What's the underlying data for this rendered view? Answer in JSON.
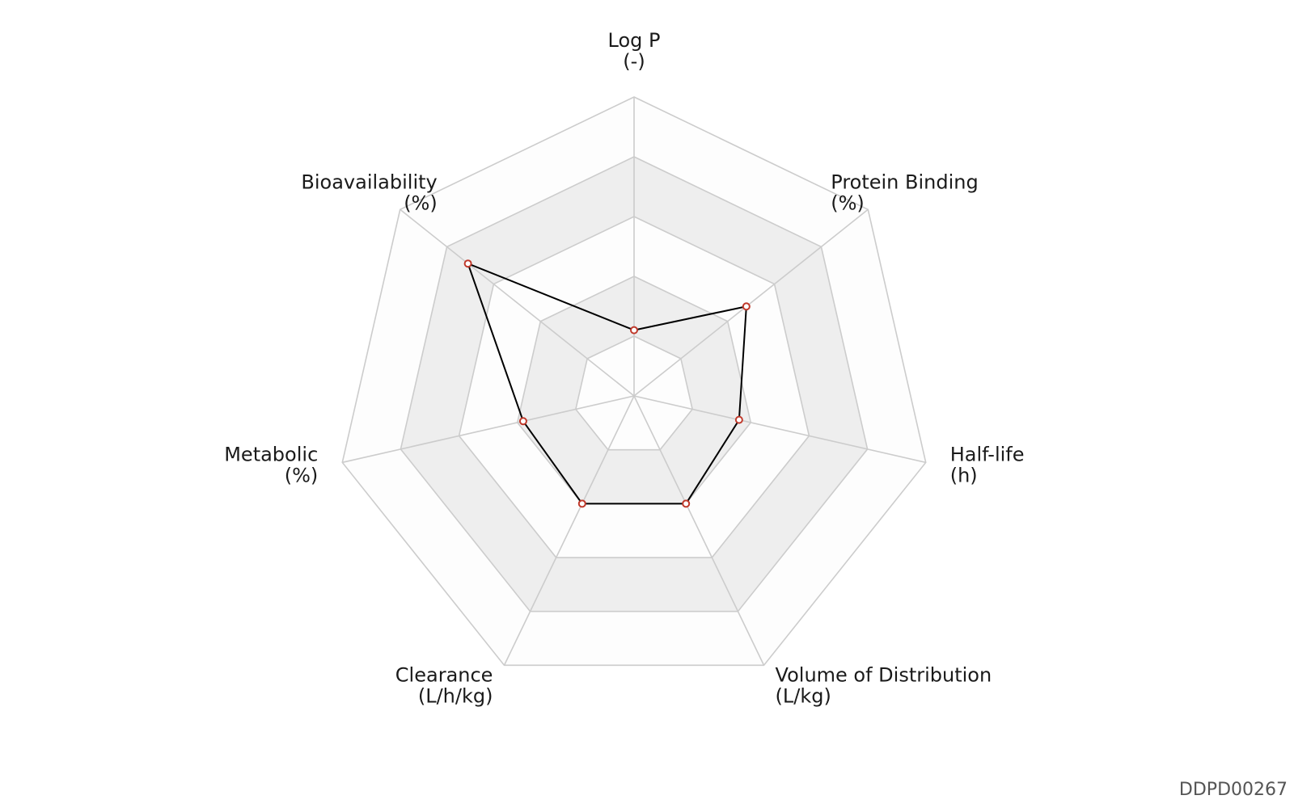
{
  "chart_data": {
    "type": "radar",
    "title": "",
    "axes": [
      {
        "name": "Log P",
        "unit": "(-)",
        "value": 0.22
      },
      {
        "name": "Protein Binding",
        "unit": "(%)",
        "value": 0.48
      },
      {
        "name": "Half-life",
        "unit": "(h)",
        "value": 0.36
      },
      {
        "name": "Volume of Distribution",
        "unit": "(L/kg)",
        "value": 0.4
      },
      {
        "name": "Clearance",
        "unit": "(L/h/kg)",
        "value": 0.4
      },
      {
        "name": "Metabolic",
        "unit": "(%)",
        "value": 0.38
      },
      {
        "name": "Bioavailability",
        "unit": "(%)",
        "value": 0.71
      }
    ],
    "range": [
      0,
      1
    ],
    "rings": 5,
    "grid": true,
    "colors": {
      "line": "#000000",
      "marker_edge": "#c0392b",
      "marker_fill": "#ffffff",
      "grid": "#cccccc",
      "band_fill": "#eeeeee",
      "band_fill_alt": "#fdfdfd"
    }
  },
  "footer": {
    "id": "DDPD00267"
  }
}
